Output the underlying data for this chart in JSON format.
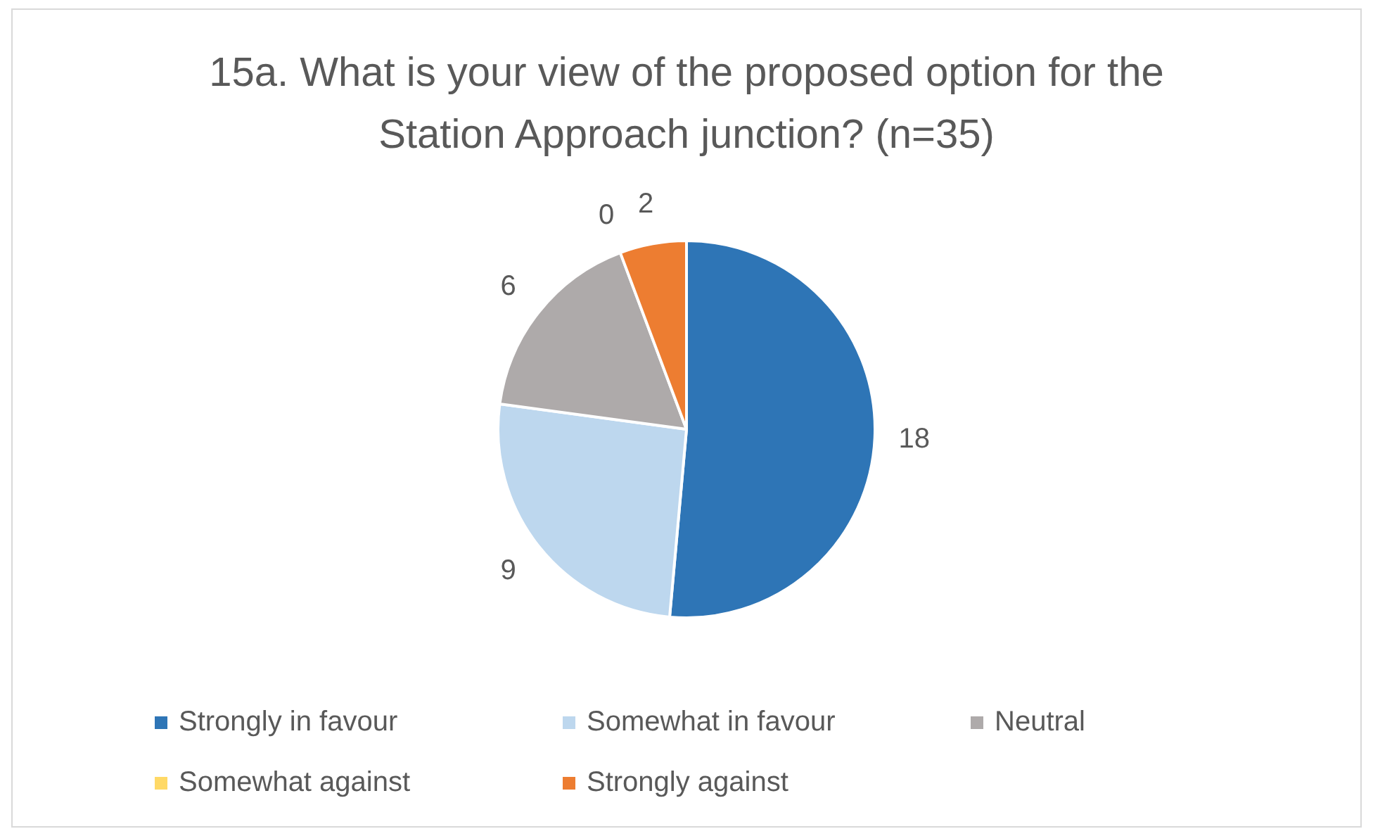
{
  "chart_data": {
    "type": "pie",
    "title": "15a. What is your view of the proposed option for the Station Approach junction? (n=35)",
    "categories": [
      "Strongly in favour",
      "Somewhat in favour",
      "Neutral",
      "Somewhat against",
      "Strongly against"
    ],
    "values": [
      18,
      9,
      6,
      0,
      2
    ],
    "colors": [
      "#2e75b6",
      "#bdd7ee",
      "#aeaaaa",
      "#ffd966",
      "#ed7d31"
    ],
    "value_labels": [
      "18",
      "9",
      "6",
      "0",
      "2"
    ],
    "legend": "bottom"
  }
}
